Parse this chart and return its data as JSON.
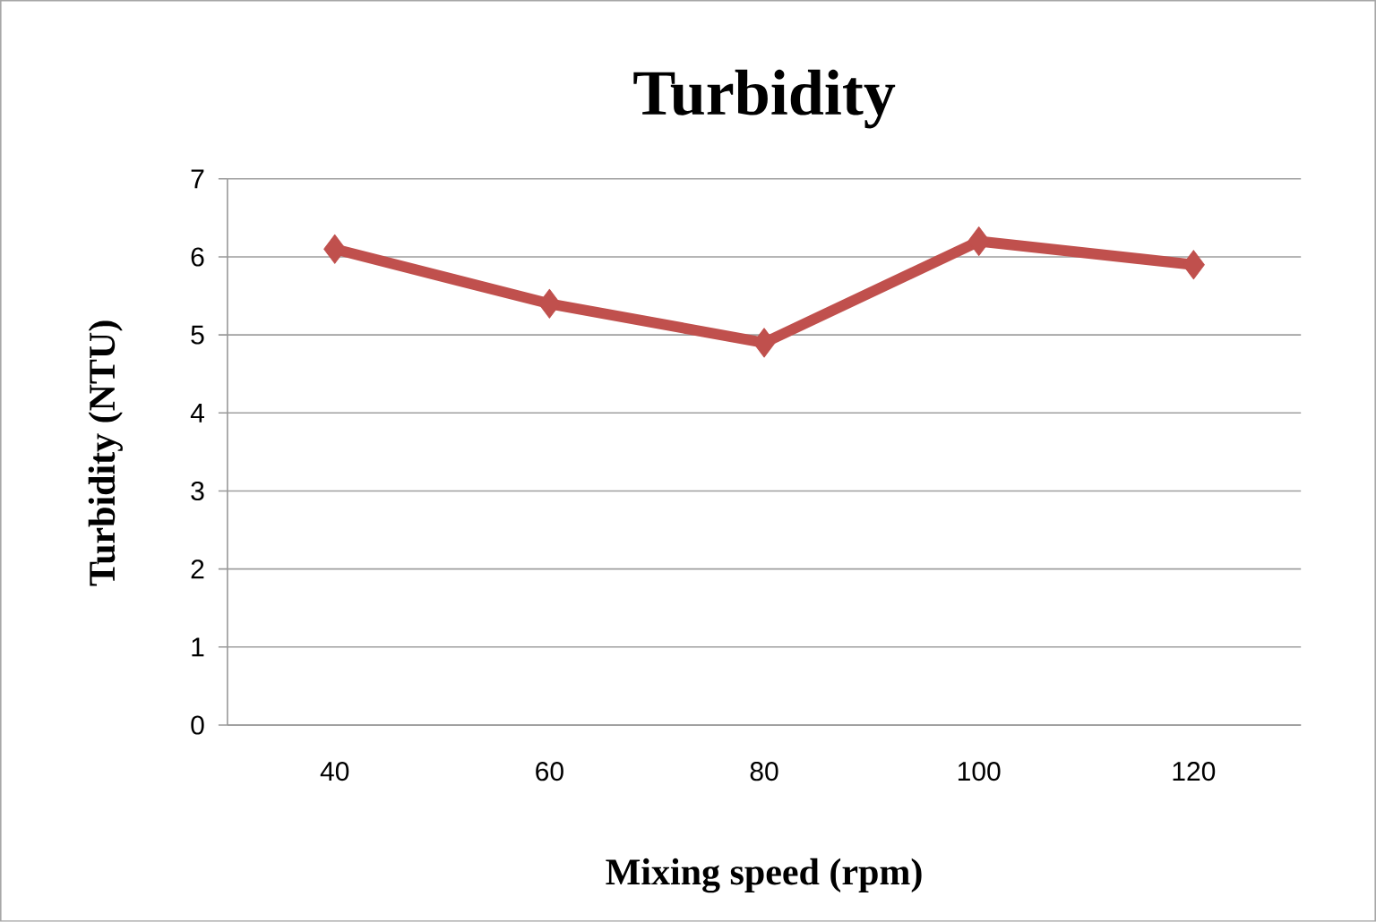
{
  "chart_data": {
    "type": "line",
    "title": "Turbidity",
    "xlabel": "Mixing speed (rpm)",
    "ylabel": "Turbidity (NTU)",
    "categories": [
      "40",
      "60",
      "80",
      "100",
      "120"
    ],
    "series": [
      {
        "color": "#c0504d",
        "values": [
          6.1,
          5.4,
          4.9,
          6.2,
          5.9
        ]
      }
    ],
    "ylim": [
      0,
      7
    ],
    "yticks": [
      0,
      1,
      2,
      3,
      4,
      5,
      6,
      7
    ],
    "grid": "y",
    "legend": false,
    "marker": "diamond",
    "line_style": "solid"
  }
}
